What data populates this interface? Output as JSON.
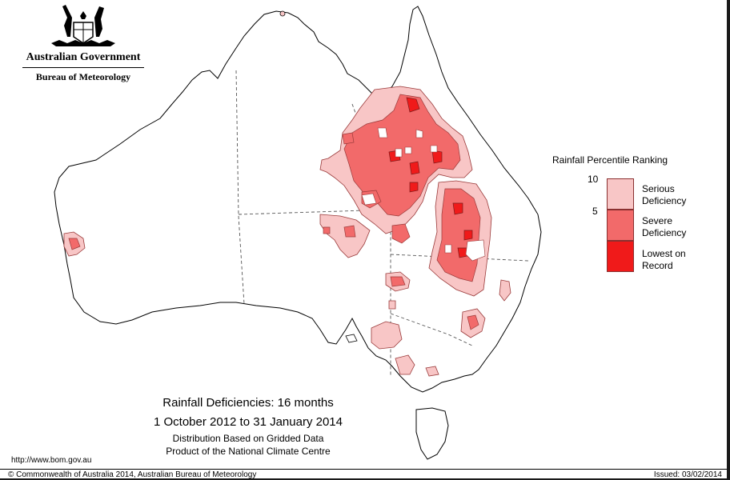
{
  "header": {
    "government": "Australian Government",
    "bureau": "Bureau of Meteorology"
  },
  "legend": {
    "title": "Rainfall Percentile Ranking",
    "scale_top": "10",
    "scale_mid": "5",
    "classes": [
      {
        "label_line1": "Serious",
        "label_line2": "Deficiency",
        "color": "#f8c6c6"
      },
      {
        "label_line1": "Severe",
        "label_line2": "Deficiency",
        "color": "#f26a6a"
      },
      {
        "label_line1": "Lowest on",
        "label_line2": "Record",
        "color": "#f01a1a"
      }
    ]
  },
  "caption": {
    "title": "Rainfall Deficiencies: 16 months",
    "period": "1 October 2012 to 31 January 2014",
    "method": "Distribution Based on Gridded Data",
    "product": "Product of the National Climate Centre"
  },
  "footer": {
    "url": "http://www.bom.gov.au",
    "copyright": "© Commonwealth of Australia 2014, Australian Bureau of Meteorology",
    "issued": "Issued: 03/02/2014"
  },
  "colors": {
    "serious": "#f8c6c6",
    "severe": "#f26a6a",
    "lowest": "#f01a1a",
    "outline": "#9a3a3a"
  }
}
